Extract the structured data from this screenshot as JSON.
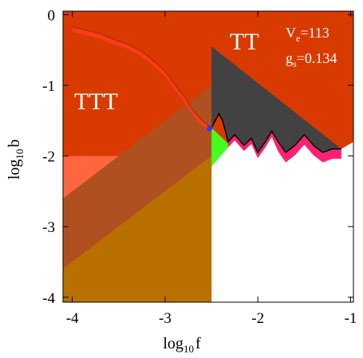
{
  "chart_data": {
    "type": "area",
    "xlabel": {
      "main": "log",
      "sub": "10",
      "var": "f"
    },
    "ylabel": {
      "main": "log",
      "sub": "10",
      "var": "b"
    },
    "xlim": [
      -4.1,
      -0.97
    ],
    "ylim": [
      -4.07,
      0.05
    ],
    "x_ticks": [
      -4,
      -3,
      -2,
      -1
    ],
    "y_ticks": [
      0,
      -1,
      -2,
      -3,
      -4
    ],
    "x_tick_labels": [
      "-4",
      "-3",
      "-2",
      "-1"
    ],
    "y_tick_labels": [
      "0",
      "-1",
      "-2",
      "-3",
      "-4"
    ],
    "annotations": {
      "ttt": "TTT",
      "tt": "TT",
      "ve_main": "V",
      "ve_sub": "e",
      "ve_value": "=113",
      "gs_main": "g",
      "gs_sub": "s",
      "gs_value": "=0.134"
    },
    "colors": {
      "main_region": "#d93a00",
      "lower_region": "#ff6640",
      "band_dark": "#b05020",
      "band_mid": "#ba7000",
      "tt_triangle": "#424242",
      "green_region": "#44ff22",
      "pink_band": "#ff2070",
      "boundary_bright": "#ff3a1a",
      "point": "#2a3aff"
    },
    "regions": {
      "ttt_boundary": [
        [
          -4.0,
          -0.17
        ],
        [
          -3.85,
          -0.22
        ],
        [
          -3.7,
          -0.27
        ],
        [
          -3.55,
          -0.35
        ],
        [
          -3.4,
          -0.42
        ],
        [
          -3.25,
          -0.52
        ],
        [
          -3.1,
          -0.68
        ],
        [
          -3.0,
          -0.8
        ],
        [
          -2.9,
          -0.98
        ],
        [
          -2.8,
          -1.15
        ],
        [
          -2.7,
          -1.35
        ],
        [
          -2.6,
          -1.5
        ],
        [
          -2.5,
          -1.6
        ]
      ],
      "tt_triangle": [
        [
          -2.5,
          -0.45
        ],
        [
          -1.1,
          -1.9
        ],
        [
          -2.5,
          -1.9
        ]
      ],
      "tt_lower_boundary": [
        [
          -2.5,
          -1.6
        ],
        [
          -2.42,
          -1.4
        ],
        [
          -2.38,
          -1.5
        ],
        [
          -2.32,
          -1.8
        ],
        [
          -2.25,
          -1.7
        ],
        [
          -2.15,
          -1.85
        ],
        [
          -2.07,
          -1.75
        ],
        [
          -2.0,
          -1.95
        ],
        [
          -1.92,
          -1.8
        ],
        [
          -1.85,
          -1.65
        ],
        [
          -1.78,
          -1.8
        ],
        [
          -1.7,
          -1.95
        ],
        [
          -1.6,
          -1.85
        ],
        [
          -1.5,
          -1.7
        ],
        [
          -1.4,
          -1.85
        ],
        [
          -1.3,
          -1.95
        ],
        [
          -1.2,
          -1.9
        ],
        [
          -1.1,
          -1.9
        ]
      ],
      "green_region": [
        [
          -2.5,
          -1.6
        ],
        [
          -2.3,
          -1.85
        ],
        [
          -2.5,
          -2.15
        ]
      ],
      "band_dark_ranges": {
        "slope": 1,
        "lower_intercept": 0.5,
        "upper_intercept": 1.5
      },
      "band_mid_ranges": {
        "slope": 1,
        "lower_intercept": -0.3,
        "upper_intercept": 0.5
      },
      "cutoff_f": -2.5
    },
    "points": [
      {
        "x": -2.52,
        "y": -1.61
      }
    ]
  }
}
